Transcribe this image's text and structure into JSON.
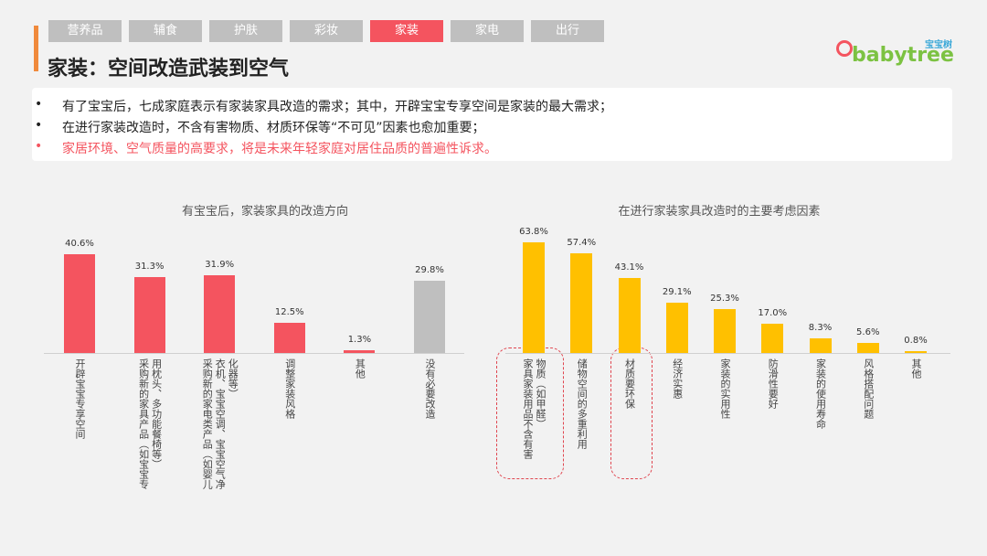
{
  "tabs": [
    "营养品",
    "辅食",
    "护肤",
    "彩妆",
    "家装",
    "家电",
    "出行"
  ],
  "title": "家装：空间改造武装到空气",
  "logo": {
    "cn": "宝宝树",
    "en": "babytree"
  },
  "bullets": [
    "有了宝宝后，七成家庭表示有家装家具改造的需求；其中，开辟宝宝专享空间是家装的最大需求；",
    "在进行家装改造时，不含有害物质、材质环保等“不可见”因素也愈加重要；",
    "家居环境、空气质量的高要求，将是未来年轻家庭对居住品质的普遍性诉求。"
  ],
  "chart_data": [
    {
      "type": "bar",
      "title": "有宝宝后，家装家具的改造方向",
      "categories": [
        "开辟宝宝专享空间",
        "采购新的家具产品（如宝宝专用枕头、多功能餐椅等）",
        "采购新的家电类产品（如婴儿衣机、宝宝空调、宝宝空气净化器等）",
        "调整家装风格",
        "其他",
        "没有必要改造"
      ],
      "values": [
        40.6,
        31.3,
        31.9,
        12.5,
        1.3,
        29.8
      ],
      "value_labels": [
        "40.6%",
        "31.3%",
        "31.9%",
        "12.5%",
        "1.3%",
        "29.8%"
      ],
      "colors": [
        "#f4545f",
        "#f4545f",
        "#f4545f",
        "#f4545f",
        "#f4545f",
        "#bfbfbf"
      ]
    },
    {
      "type": "bar",
      "title": "在进行家装家具改造时的主要考虑因素",
      "categories": [
        "家具家装用品不含有害物质（如甲醛）",
        "储物空间的多重利用",
        "材质要环保",
        "经济实惠",
        "家装的实用性",
        "防滑性要好",
        "家装的使用寿命",
        "风格搭配问题",
        "其他"
      ],
      "values": [
        63.8,
        57.4,
        43.1,
        29.1,
        25.3,
        17.0,
        8.3,
        5.6,
        0.8
      ],
      "value_labels": [
        "63.8%",
        "57.4%",
        "43.1%",
        "29.1%",
        "25.3%",
        "17.0%",
        "8.3%",
        "5.6%",
        "0.8%"
      ],
      "colors": [
        "#ffc000",
        "#ffc000",
        "#ffc000",
        "#ffc000",
        "#ffc000",
        "#ffc000",
        "#ffc000",
        "#ffc000",
        "#ffc000"
      ]
    }
  ]
}
